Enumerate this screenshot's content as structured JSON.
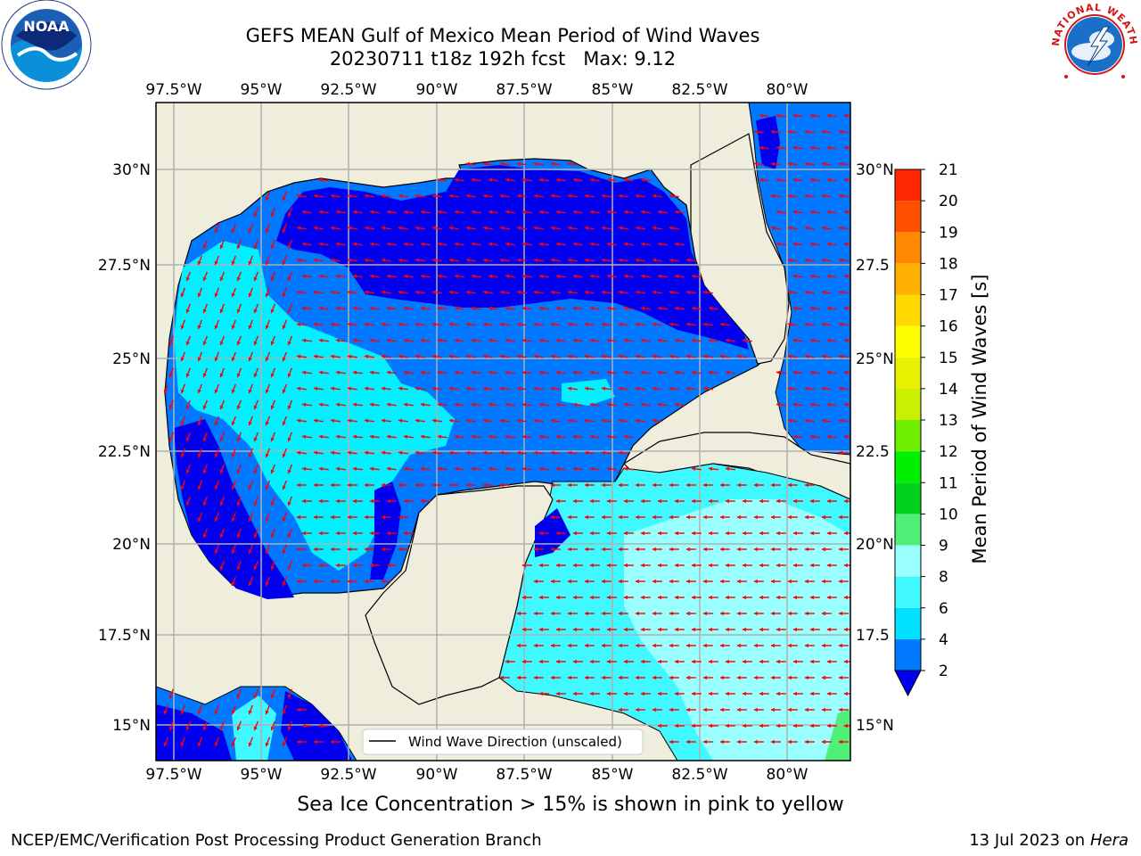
{
  "title_line1": "GEFS MEAN Gulf of Mexico Mean Period of Wind Waves",
  "title_line2": "20230711 t18z 192h fcst   Max: 9.12",
  "note": "Sea Ice Concentration > 15% is shown in pink to yellow",
  "footer_left": "NCEP/EMC/Verification Post Processing Product Generation Branch",
  "footer_right_date": "13 Jul 2023 on",
  "footer_right_host": "Hera",
  "legend_label": "Wind Wave Direction (unscaled)",
  "colorbar": {
    "label": "Mean Period of Wind Waves [s]",
    "ticks": [
      "2",
      "4",
      "6",
      "8",
      "9",
      "10",
      "11",
      "12",
      "13",
      "14",
      "15",
      "16",
      "17",
      "18",
      "19",
      "20",
      "21"
    ],
    "colors": [
      "#0078ff",
      "#00e0ff",
      "#40f8ff",
      "#99ffff",
      "#50f078",
      "#00d01e",
      "#00f000",
      "#70f000",
      "#c8f000",
      "#e8f000",
      "#ffff00",
      "#ffd800",
      "#ffb000",
      "#ff8800",
      "#ff5000",
      "#ff2800",
      "#ff0000"
    ],
    "under_color": "#0000ee"
  },
  "axes": {
    "lon_labels": [
      "97.5°W",
      "95°W",
      "92.5°W",
      "90°W",
      "87.5°W",
      "85°W",
      "82.5°W",
      "80°W"
    ],
    "lat_labels": [
      "30°N",
      "27.5°N",
      "25°N",
      "22.5°N",
      "20°N",
      "17.5°N",
      "15°N"
    ],
    "lat_labels_right": [
      "30°N",
      "27.5",
      "25°N",
      "22.5",
      "20°N",
      "17.5",
      "15°N"
    ]
  },
  "colors": {
    "land": "#efeddc",
    "arrow": "#ff0000",
    "grid": "#b0b0b0"
  },
  "logos": {
    "noaa": "NOAA",
    "nws_text": "NATIONAL WEATHER SERVICE"
  }
}
